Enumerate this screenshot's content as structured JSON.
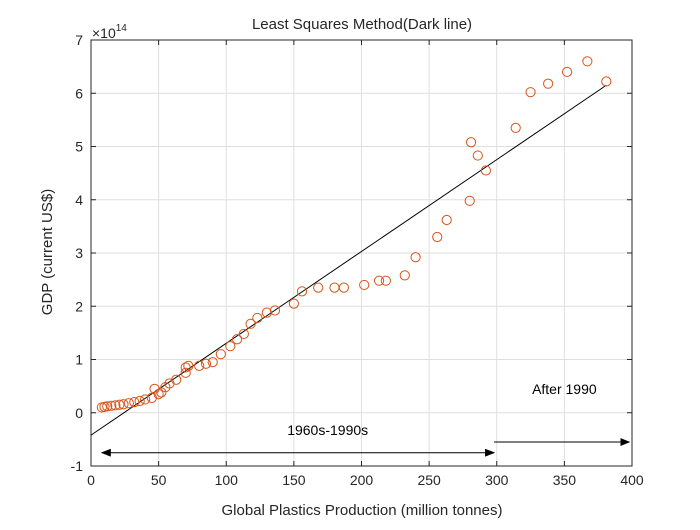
{
  "chart_data": {
    "type": "scatter",
    "title": "Least Squares Method(Dark line)",
    "xlabel": "Global Plastics Production (million tonnes)",
    "ylabel": "GDP (current US$)",
    "exponent_label": "×10",
    "exponent_power": "14",
    "xlim": [
      0,
      400
    ],
    "ylim": [
      -1,
      7
    ],
    "x_ticks": [
      0,
      50,
      100,
      150,
      200,
      250,
      300,
      350,
      400
    ],
    "y_ticks": [
      -1,
      0,
      1,
      2,
      3,
      4,
      5,
      6,
      7
    ],
    "grid": true,
    "marker_color": "#d95319",
    "line_color": "#000000",
    "series": [
      {
        "type": "scatter",
        "points": [
          [
            8,
            0.1
          ],
          [
            10,
            0.11
          ],
          [
            12,
            0.12
          ],
          [
            15,
            0.13
          ],
          [
            18,
            0.14
          ],
          [
            21,
            0.15
          ],
          [
            24,
            0.16
          ],
          [
            28,
            0.18
          ],
          [
            32,
            0.2
          ],
          [
            36,
            0.22
          ],
          [
            40,
            0.25
          ],
          [
            45,
            0.28
          ],
          [
            47,
            0.45
          ],
          [
            50,
            0.35
          ],
          [
            52,
            0.38
          ],
          [
            55,
            0.48
          ],
          [
            58,
            0.55
          ],
          [
            63,
            0.62
          ],
          [
            70,
            0.75
          ],
          [
            70,
            0.85
          ],
          [
            72,
            0.88
          ],
          [
            80,
            0.88
          ],
          [
            85,
            0.92
          ],
          [
            90,
            0.95
          ],
          [
            96,
            1.1
          ],
          [
            103,
            1.25
          ],
          [
            108,
            1.38
          ],
          [
            113,
            1.48
          ],
          [
            118,
            1.67
          ],
          [
            123,
            1.78
          ],
          [
            130,
            1.88
          ],
          [
            136,
            1.92
          ],
          [
            150,
            2.05
          ],
          [
            156,
            2.28
          ],
          [
            168,
            2.35
          ],
          [
            180,
            2.35
          ],
          [
            187,
            2.35
          ],
          [
            202,
            2.4
          ],
          [
            213,
            2.48
          ],
          [
            218,
            2.48
          ],
          [
            232,
            2.58
          ],
          [
            240,
            2.92
          ],
          [
            256,
            3.3
          ],
          [
            263,
            3.62
          ],
          [
            280,
            3.98
          ],
          [
            281,
            5.08
          ],
          [
            286,
            4.83
          ],
          [
            292,
            4.55
          ],
          [
            314,
            5.35
          ],
          [
            325,
            6.02
          ],
          [
            338,
            6.18
          ],
          [
            352,
            6.4
          ],
          [
            367,
            6.6
          ],
          [
            381,
            6.22
          ]
        ]
      },
      {
        "type": "line",
        "points": [
          [
            0,
            -0.42
          ],
          [
            381,
            6.15
          ]
        ]
      }
    ],
    "annotations": [
      {
        "text": "1960s-1990s",
        "x": 175,
        "y": -0.42,
        "arrow_from": [
          8,
          -0.75
        ],
        "arrow_to": [
          298,
          -0.75
        ],
        "arrow": "double"
      },
      {
        "text": "After 1990",
        "x": 350,
        "y": 0.35,
        "arrow_from": [
          298,
          -0.55
        ],
        "arrow_to": [
          398,
          -0.55
        ],
        "arrow": "single"
      }
    ]
  }
}
